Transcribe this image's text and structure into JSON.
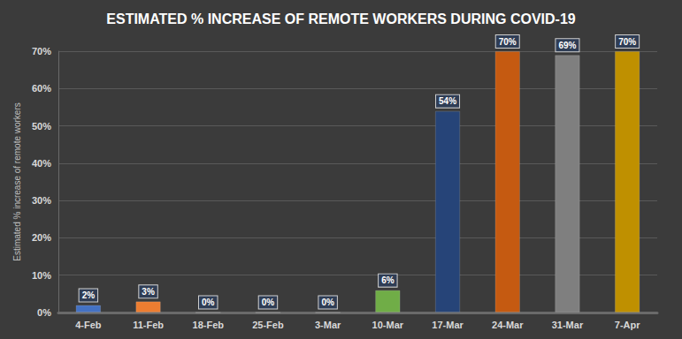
{
  "chart_data": {
    "type": "bar",
    "title": "ESTIMATED % INCREASE OF REMOTE WORKERS DURING COVID-19",
    "y_label": "Estimated % increase of remote workers",
    "categories": [
      "4-Feb",
      "11-Feb",
      "18-Feb",
      "25-Feb",
      "3-Mar",
      "10-Mar",
      "17-Mar",
      "24-Mar",
      "31-Mar",
      "7-Apr"
    ],
    "values": [
      2,
      3,
      0,
      0,
      0,
      6,
      54,
      70,
      69,
      70
    ],
    "value_labels": [
      "2%",
      "3%",
      "0%",
      "0%",
      "0%",
      "6%",
      "54%",
      "70%",
      "69%",
      "70%"
    ],
    "colors": [
      "#4472c4",
      "#ed7d31",
      "#a5a5a5",
      "#ffc000",
      "#5b9bd5",
      "#70ad47",
      "#264478",
      "#c55a11",
      "#7f7f7f",
      "#bf9000"
    ],
    "ylim": [
      0,
      70
    ],
    "yticks": [
      {
        "value": 0,
        "label": "0%"
      },
      {
        "value": 10,
        "label": "10%"
      },
      {
        "value": 20,
        "label": "20%"
      },
      {
        "value": 30,
        "label": "30%"
      },
      {
        "value": 40,
        "label": "40%"
      },
      {
        "value": 50,
        "label": "50%"
      },
      {
        "value": 60,
        "label": "60%"
      },
      {
        "value": 70,
        "label": "70%"
      }
    ],
    "grid": true,
    "data_labels": true
  }
}
